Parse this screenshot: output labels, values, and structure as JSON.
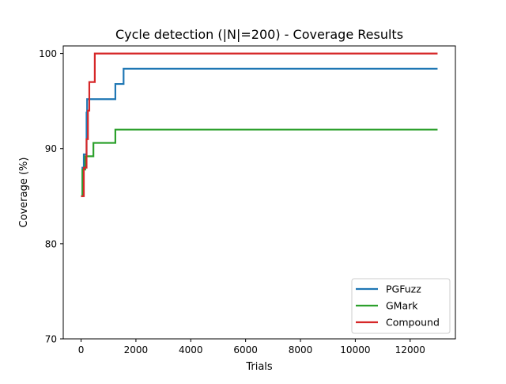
{
  "chart_data": {
    "type": "line",
    "title": "Cycle detection (|N|=200) - Coverage Results",
    "xlabel": "Trials",
    "ylabel": "Coverage (%)",
    "xlim": [
      -650,
      13650
    ],
    "ylim": [
      70,
      100.8
    ],
    "xticks": [
      0,
      2000,
      4000,
      6000,
      8000,
      10000,
      12000
    ],
    "yticks": [
      70,
      80,
      90,
      100
    ],
    "grid": false,
    "legend_position": "lower right",
    "step": "post",
    "series": [
      {
        "name": "PGFuzz",
        "color": "#1f77b4",
        "points": [
          [
            0,
            85
          ],
          [
            50,
            88
          ],
          [
            100,
            89.4
          ],
          [
            200,
            93.8
          ],
          [
            220,
            95.2
          ],
          [
            1250,
            96.8
          ],
          [
            1550,
            98.4
          ],
          [
            13000,
            98.4
          ]
        ]
      },
      {
        "name": "GMark",
        "color": "#2ca02c",
        "points": [
          [
            0,
            85
          ],
          [
            50,
            87.8
          ],
          [
            150,
            89.2
          ],
          [
            450,
            90.6
          ],
          [
            1250,
            92
          ],
          [
            13000,
            92
          ]
        ]
      },
      {
        "name": "Compound",
        "color": "#d62728",
        "points": [
          [
            0,
            85
          ],
          [
            100,
            88
          ],
          [
            200,
            91
          ],
          [
            250,
            94
          ],
          [
            300,
            97
          ],
          [
            500,
            100
          ],
          [
            13000,
            100
          ]
        ]
      }
    ]
  }
}
